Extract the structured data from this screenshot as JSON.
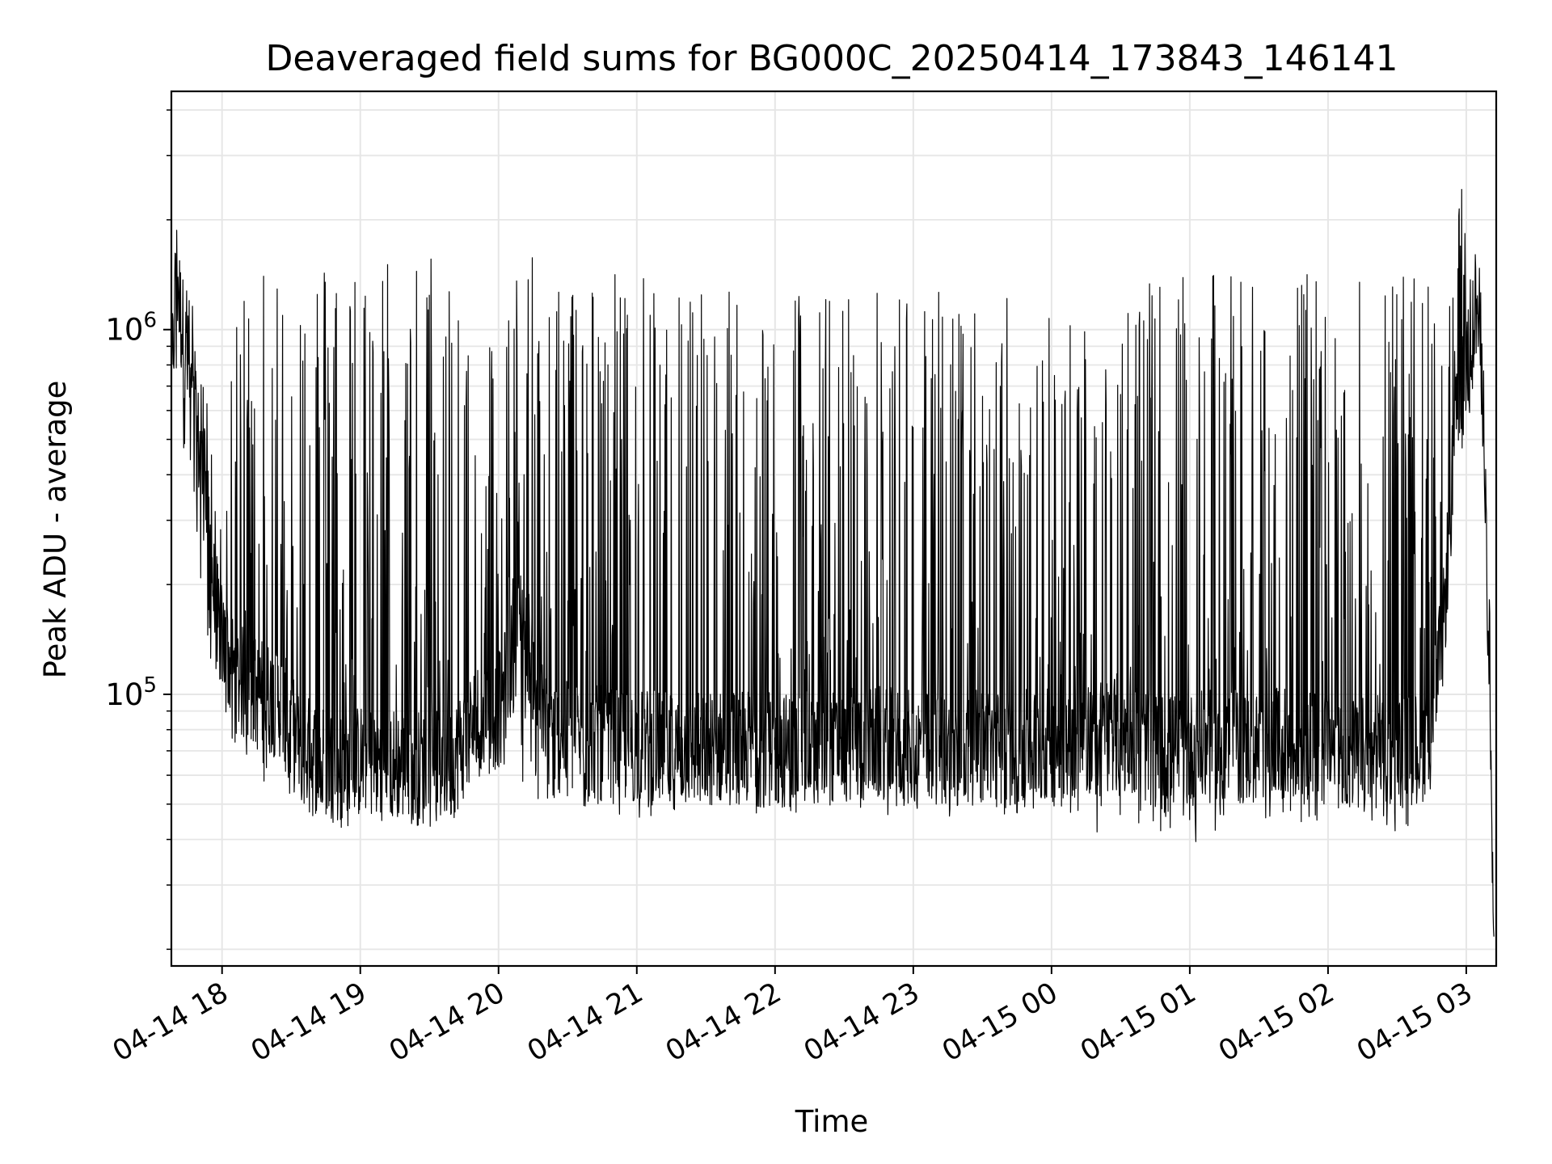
{
  "chart_data": {
    "type": "line",
    "title": "Deaveraged field sums for BG000C_20250414_173843_146141",
    "xlabel": "Time",
    "ylabel": "Peak ADU - average",
    "y_scale": "log",
    "ylim": [
      18000,
      4500000
    ],
    "xlim": [
      "2025-04-14 17:38",
      "2025-04-15 03:13"
    ],
    "grid": true,
    "line_color": "#000000",
    "grid_color": "#e6e6e6",
    "x_ticks": [
      {
        "value": "2025-04-14 18:00",
        "label": "04-14 18"
      },
      {
        "value": "2025-04-14 19:00",
        "label": "04-14 19"
      },
      {
        "value": "2025-04-14 20:00",
        "label": "04-14 20"
      },
      {
        "value": "2025-04-14 21:00",
        "label": "04-14 21"
      },
      {
        "value": "2025-04-14 22:00",
        "label": "04-14 22"
      },
      {
        "value": "2025-04-14 23:00",
        "label": "04-14 23"
      },
      {
        "value": "2025-04-15 00:00",
        "label": "04-15 00"
      },
      {
        "value": "2025-04-15 01:00",
        "label": "04-15 01"
      },
      {
        "value": "2025-04-15 02:00",
        "label": "04-15 02"
      },
      {
        "value": "2025-04-15 03:00",
        "label": "04-15 03"
      }
    ],
    "y_ticks": [
      {
        "value": 100000,
        "base": "10",
        "exp": "5"
      },
      {
        "value": 1000000,
        "base": "10",
        "exp": "6"
      }
    ],
    "series": [
      {
        "x": [
          "2025-04-14 17:38",
          "2025-04-14 17:40",
          "2025-04-14 17:42",
          "2025-04-14 17:45",
          "2025-04-14 17:47",
          "2025-04-14 17:50",
          "2025-04-14 17:52",
          "2025-04-14 17:55",
          "2025-04-14 17:57",
          "2025-04-14 18:00",
          "2025-04-14 18:05",
          "2025-04-14 18:10",
          "2025-04-14 18:15",
          "2025-04-14 18:20",
          "2025-04-14 18:25",
          "2025-04-14 18:30",
          "2025-04-14 18:35",
          "2025-04-14 18:40",
          "2025-04-14 18:45",
          "2025-04-14 18:50",
          "2025-04-14 18:55",
          "2025-04-14 19:00",
          "2025-04-14 19:10",
          "2025-04-14 19:20",
          "2025-04-14 19:30",
          "2025-04-14 19:40",
          "2025-04-14 19:50",
          "2025-04-14 20:00",
          "2025-04-14 20:05",
          "2025-04-14 20:10",
          "2025-04-14 20:15",
          "2025-04-14 20:20",
          "2025-04-14 20:30",
          "2025-04-14 20:40",
          "2025-04-14 20:50",
          "2025-04-14 21:00",
          "2025-04-14 21:15",
          "2025-04-14 21:30",
          "2025-04-14 21:45",
          "2025-04-14 22:00",
          "2025-04-14 22:15",
          "2025-04-14 22:30",
          "2025-04-14 22:45",
          "2025-04-14 23:00",
          "2025-04-14 23:15",
          "2025-04-14 23:30",
          "2025-04-14 23:45",
          "2025-04-15 00:00",
          "2025-04-15 00:15",
          "2025-04-15 00:30",
          "2025-04-15 00:45",
          "2025-04-15 01:00",
          "2025-04-15 01:15",
          "2025-04-15 01:30",
          "2025-04-15 01:45",
          "2025-04-15 02:00",
          "2025-04-15 02:15",
          "2025-04-15 02:30",
          "2025-04-15 02:40",
          "2025-04-15 02:45",
          "2025-04-15 02:50",
          "2025-04-15 02:55",
          "2025-04-15 03:00",
          "2025-04-15 03:02",
          "2025-04-15 03:04",
          "2025-04-15 03:06",
          "2025-04-15 03:08",
          "2025-04-15 03:10",
          "2025-04-15 03:12"
        ],
        "base": [
          600000,
          1500000,
          1100000,
          800000,
          600000,
          480000,
          380000,
          250000,
          170000,
          140000,
          115000,
          105000,
          100000,
          98000,
          96000,
          80000,
          70000,
          68000,
          65000,
          64000,
          62000,
          66000,
          65000,
          64000,
          62000,
          65000,
          85000,
          90000,
          120000,
          170000,
          120000,
          80000,
          75000,
          74000,
          72000,
          73000,
          70000,
          71000,
          72000,
          70000,
          71000,
          72000,
          73000,
          71000,
          70000,
          72000,
          71000,
          73000,
          75000,
          80000,
          70000,
          70000,
          72000,
          71000,
          73000,
          70000,
          69000,
          70000,
          71000,
          80000,
          150000,
          500000,
          800000,
          900000,
          1200000,
          1000000,
          500000,
          80000,
          22000
        ],
        "peak": [
          1700000,
          1700000,
          1600000,
          1400000,
          1200000,
          900000,
          700000,
          600000,
          400000,
          300000,
          900000,
          1500000,
          1600000,
          1800000,
          1700000,
          1700000,
          1600000,
          1700000,
          1600000,
          1700000,
          1600000,
          1600000,
          1700000,
          1600000,
          1700000,
          1600000,
          1700000,
          800000,
          1500000,
          1600000,
          1600000,
          1500000,
          1500000,
          1500000,
          1500000,
          1400000,
          1500000,
          1400000,
          1400000,
          1400000,
          1300000,
          1300000,
          1300000,
          1350000,
          1300000,
          1300000,
          1250000,
          1200000,
          1100000,
          1300000,
          1350000,
          1400000,
          1450000,
          1450000,
          1400000,
          1450000,
          1500000,
          1500000,
          1500000,
          1400000,
          800000,
          1600000,
          3500000,
          1500000,
          1400000,
          1100000,
          700000,
          200000,
          60000
        ],
        "min": [
          400000,
          700000,
          500000,
          400000,
          300000,
          200000,
          150000,
          120000,
          100000,
          90000,
          70000,
          65000,
          60000,
          55000,
          52000,
          50000,
          48000,
          46000,
          45000,
          34000,
          44000,
          46000,
          45000,
          44000,
          42000,
          48000,
          60000,
          60000,
          65000,
          55000,
          45000,
          45000,
          50000,
          48000,
          46000,
          45000,
          46000,
          47000,
          48000,
          45000,
          47000,
          48000,
          47000,
          46000,
          45000,
          46000,
          47000,
          48000,
          40000,
          45000,
          42000,
          38000,
          44000,
          45000,
          44000,
          45000,
          44000,
          42000,
          44000,
          60000,
          120000,
          300000,
          500000,
          600000,
          900000,
          700000,
          300000,
          60000,
          20000
        ]
      }
    ]
  }
}
